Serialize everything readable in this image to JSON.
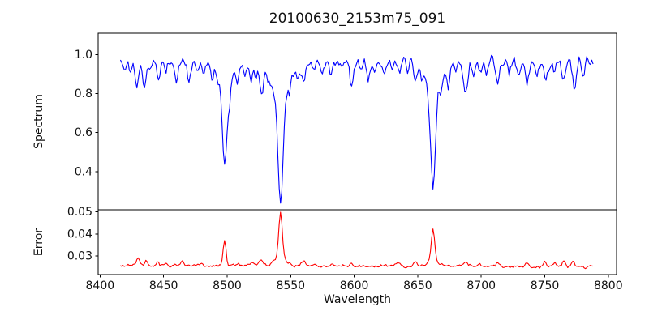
{
  "figure": {
    "title": "20100630_2153m75_091",
    "xlabel": "Wavelength",
    "ylabel_top": "Spectrum",
    "ylabel_bottom": "Error"
  },
  "chart_data": {
    "type": "line",
    "title": "20100630_2153m75_091",
    "xlabel": "Wavelength",
    "grid": false,
    "legend": null,
    "xlim": [
      8398.5,
      8806.5
    ],
    "x_ticks": [
      8400,
      8450,
      8500,
      8550,
      8600,
      8650,
      8700,
      8750,
      8800
    ],
    "x_data_range": [
      8416,
      8788
    ],
    "x_step_angstrom": 1,
    "seed": 11,
    "panels": [
      {
        "name": "spectrum",
        "ylabel": "Spectrum",
        "line_color": "#0000ff",
        "ylim": [
          0.204,
          1.109
        ],
        "y_ticks": [
          [
            0.4,
            "0.4"
          ],
          [
            0.6,
            "0.6"
          ],
          [
            0.8,
            "0.8"
          ],
          [
            1.0,
            "1.0"
          ]
        ],
        "continuum": {
          "start": 0.97,
          "end": 0.955
        },
        "noise_sigma": {
          "start": 0.011,
          "end": 0.017
        },
        "lines_note": "absorption lines as [center_wavelength, depth, sigma_angstrom]; Ca II triplet cores ~0.45, 0.24, 0.31",
        "absorption_lines": [
          [
            8498,
            0.42,
            1.8
          ],
          [
            8498,
            0.1,
            5.0
          ],
          [
            8542,
            0.58,
            2.0
          ],
          [
            8542,
            0.15,
            7.0
          ],
          [
            8662,
            0.52,
            1.9
          ],
          [
            8662,
            0.13,
            6.0
          ],
          [
            8419,
            0.05,
            1.2
          ],
          [
            8424,
            0.06,
            1.2
          ],
          [
            8429,
            0.13,
            1.4
          ],
          [
            8435,
            0.15,
            1.3
          ],
          [
            8440,
            0.05,
            1.1
          ],
          [
            8446,
            0.1,
            1.3
          ],
          [
            8452,
            0.06,
            1.1
          ],
          [
            8460,
            0.1,
            1.3
          ],
          [
            8470,
            0.12,
            1.3
          ],
          [
            8477,
            0.05,
            1.1
          ],
          [
            8482,
            0.06,
            1.1
          ],
          [
            8488,
            0.09,
            1.2
          ],
          [
            8493,
            0.05,
            1.0
          ],
          [
            8502,
            0.12,
            1.2
          ],
          [
            8508,
            0.07,
            1.2
          ],
          [
            8514,
            0.08,
            1.2
          ],
          [
            8519,
            0.1,
            1.3
          ],
          [
            8523,
            0.06,
            1.1
          ],
          [
            8527,
            0.13,
            1.4
          ],
          [
            8532,
            0.05,
            1.1
          ],
          [
            8536,
            0.05,
            1.1
          ],
          [
            8549,
            0.05,
            1.1
          ],
          [
            8556,
            0.07,
            1.2
          ],
          [
            8560,
            0.09,
            1.3
          ],
          [
            8568,
            0.05,
            1.1
          ],
          [
            8575,
            0.05,
            1.1
          ],
          [
            8582,
            0.07,
            1.2
          ],
          [
            8590,
            0.05,
            1.1
          ],
          [
            8598,
            0.12,
            1.4
          ],
          [
            8605,
            0.05,
            1.1
          ],
          [
            8611,
            0.07,
            1.2
          ],
          [
            8617,
            0.05,
            1.1
          ],
          [
            8624,
            0.06,
            1.1
          ],
          [
            8630,
            0.05,
            1.1
          ],
          [
            8636,
            0.06,
            1.2
          ],
          [
            8642,
            0.05,
            1.1
          ],
          [
            8648,
            0.09,
            1.3
          ],
          [
            8653,
            0.05,
            1.1
          ],
          [
            8668,
            0.05,
            1.1
          ],
          [
            8674,
            0.11,
            1.4
          ],
          [
            8680,
            0.06,
            1.2
          ],
          [
            8688,
            0.15,
            1.6
          ],
          [
            8694,
            0.05,
            1.1
          ],
          [
            8699,
            0.06,
            1.1
          ],
          [
            8705,
            0.05,
            1.1
          ],
          [
            8713,
            0.1,
            1.3
          ],
          [
            8722,
            0.06,
            1.1
          ],
          [
            8729,
            0.05,
            1.1
          ],
          [
            8736,
            0.1,
            1.4
          ],
          [
            8744,
            0.06,
            1.1
          ],
          [
            8751,
            0.1,
            1.3
          ],
          [
            8758,
            0.05,
            1.1
          ],
          [
            8765,
            0.08,
            1.3
          ],
          [
            8773,
            0.13,
            1.4
          ],
          [
            8780,
            0.06,
            1.2
          ]
        ]
      },
      {
        "name": "error",
        "ylabel": "Error",
        "line_color": "#ff0000",
        "ylim": [
          0.0216,
          0.0509
        ],
        "y_ticks": [
          [
            0.03,
            "0.03"
          ],
          [
            0.04,
            "0.04"
          ],
          [
            0.05,
            "0.05"
          ]
        ],
        "baseline": {
          "start": 0.0257,
          "end": 0.0253
        },
        "noise_sigma": {
          "start": 0.00035,
          "end": 0.0004
        },
        "peaks_note": "error spikes as [center_wavelength, height, sigma_angstrom]; maxima ~0.038, 0.049, 0.043 at Ca II lines",
        "emission_peaks": [
          [
            8498,
            0.0115,
            1.2
          ],
          [
            8542,
            0.0205,
            1.4
          ],
          [
            8542,
            0.0035,
            4.5
          ],
          [
            8662,
            0.0145,
            1.3
          ],
          [
            8662,
            0.0025,
            4.0
          ],
          [
            8430,
            0.0035,
            1.4
          ],
          [
            8436,
            0.0025,
            1.1
          ],
          [
            8445,
            0.0012,
            1.1
          ],
          [
            8452,
            0.001,
            1.0
          ],
          [
            8465,
            0.002,
            1.3
          ],
          [
            8480,
            0.0012,
            1.1
          ],
          [
            8508,
            0.001,
            1.0
          ],
          [
            8520,
            0.0015,
            1.2
          ],
          [
            8527,
            0.0035,
            1.5
          ],
          [
            8536,
            0.001,
            1.0
          ],
          [
            8560,
            0.002,
            1.3
          ],
          [
            8582,
            0.001,
            1.0
          ],
          [
            8598,
            0.0015,
            1.2
          ],
          [
            8634,
            0.001,
            1.0
          ],
          [
            8648,
            0.0018,
            1.2
          ],
          [
            8688,
            0.0025,
            1.4
          ],
          [
            8699,
            0.001,
            1.0
          ],
          [
            8713,
            0.0015,
            1.1
          ],
          [
            8736,
            0.0015,
            1.1
          ],
          [
            8750,
            0.002,
            1.2
          ],
          [
            8758,
            0.0018,
            1.1
          ],
          [
            8765,
            0.0028,
            1.2
          ],
          [
            8772,
            0.0022,
            1.1
          ]
        ]
      }
    ]
  }
}
